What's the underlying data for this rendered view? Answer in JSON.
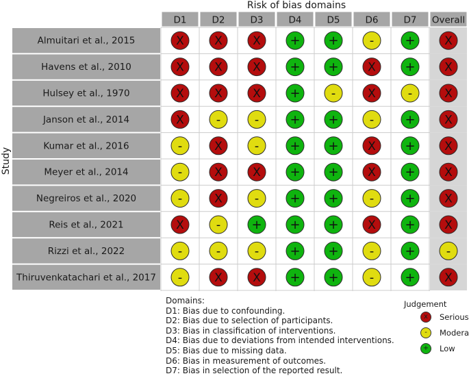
{
  "title": "Risk of bias domains",
  "y_axis_label": "Study",
  "domains": [
    "D1",
    "D2",
    "D3",
    "D4",
    "D5",
    "D6",
    "D7",
    "Overall"
  ],
  "studies": [
    {
      "name": "Almuitari et al., 2015",
      "ratings": [
        "X",
        "X",
        "X",
        "+",
        "+",
        "-",
        "+",
        "X"
      ]
    },
    {
      "name": "Havens et al., 2010",
      "ratings": [
        "X",
        "X",
        "X",
        "+",
        "+",
        "X",
        "+",
        "X"
      ]
    },
    {
      "name": "Hulsey et al., 1970",
      "ratings": [
        "X",
        "X",
        "X",
        "+",
        "-",
        "X",
        "-",
        "X"
      ]
    },
    {
      "name": "Janson et al., 2014",
      "ratings": [
        "X",
        "-",
        "-",
        "+",
        "+",
        "-",
        "+",
        "X"
      ]
    },
    {
      "name": "Kumar et al., 2016",
      "ratings": [
        "-",
        "X",
        "-",
        "+",
        "+",
        "X",
        "+",
        "X"
      ]
    },
    {
      "name": "Meyer et al., 2014",
      "ratings": [
        "-",
        "X",
        "X",
        "+",
        "+",
        "X",
        "+",
        "X"
      ]
    },
    {
      "name": "Negreiros et al., 2020",
      "ratings": [
        "-",
        "X",
        "-",
        "+",
        "+",
        "-",
        "+",
        "X"
      ]
    },
    {
      "name": "Reis et al., 2021",
      "ratings": [
        "X",
        "-",
        "+",
        "+",
        "+",
        "X",
        "+",
        "X"
      ]
    },
    {
      "name": "Rizzi et al., 2022",
      "ratings": [
        "-",
        "-",
        "-",
        "+",
        "+",
        "-",
        "+",
        "-"
      ]
    },
    {
      "name": "Thiruvenkatachari et al., 2017",
      "ratings": [
        "-",
        "X",
        "X",
        "+",
        "+",
        "-",
        "+",
        "X"
      ]
    }
  ],
  "domains_legend": {
    "heading": "Domains:",
    "items": [
      "D1: Bias due to confounding.",
      "D2: Bias due to selection of participants.",
      "D3: Bias in classification of interventions.",
      "D4: Bias due to deviations from intended interventions.",
      "D5: Bias due to missing data.",
      "D6: Bias in measurement of outcomes.",
      "D7: Bias in selection of the reported result."
    ]
  },
  "judgement_legend": {
    "title": "Judgement",
    "items": [
      {
        "symbol": "x",
        "label": "Serious",
        "color": "#b40d0d"
      },
      {
        "symbol": "-",
        "label": "Moderate",
        "color": "#e0dc10"
      },
      {
        "symbol": "+",
        "label": "Low",
        "color": "#0fb40f"
      }
    ]
  },
  "colors": {
    "X": "#b40d0d",
    "-": "#e0dc10",
    "+": "#0fb40f",
    "header_bg": "#a6a6a6",
    "study_bg": "#a6a6a6",
    "overall_bg": "#d6d6d6"
  }
}
